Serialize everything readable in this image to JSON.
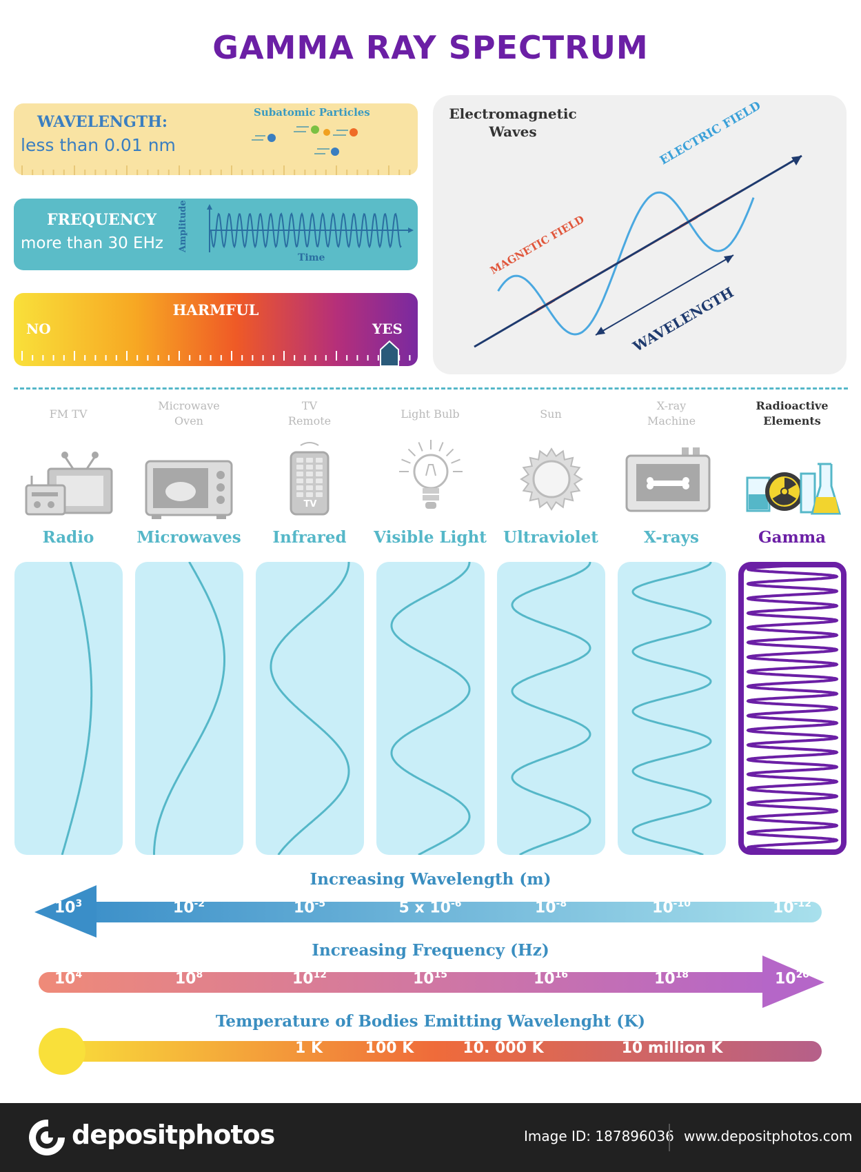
{
  "title": "GAMMA RAY SPECTRUM",
  "wavelength": {
    "label": "WAVELENGTH:",
    "value": "less than 0.01 nm",
    "particles_label": "Subatomic Particles"
  },
  "frequency": {
    "label": "FREQUENCY",
    "value": "more than 30 EHz",
    "y_axis": "Amplitude",
    "x_axis": "Time"
  },
  "harmful": {
    "label": "HARMFUL",
    "no": "NO",
    "yes": "YES"
  },
  "em": {
    "title_line1": "Electromagnetic",
    "title_line2": "Waves",
    "electric": "ELECTRIC FIELD",
    "magnetic": "MAGNETIC FIELD",
    "wavelength": "WAVELENGTH"
  },
  "sources": [
    {
      "line1": "FM   TV",
      "line2": ""
    },
    {
      "line1": "Microwave",
      "line2": "Oven"
    },
    {
      "line1": "TV",
      "line2": "Remote"
    },
    {
      "line1": "Light Bulb",
      "line2": ""
    },
    {
      "line1": "Sun",
      "line2": ""
    },
    {
      "line1": "X-ray",
      "line2": "Machine"
    },
    {
      "line1": "Radioactive",
      "line2": "Elements"
    }
  ],
  "remote_label": "TV",
  "categories": [
    "Radio",
    "Microwaves",
    "Infrared",
    "Visible Light",
    "Ultraviolet",
    "X-rays",
    "Gamma"
  ],
  "scales": {
    "wavelength": {
      "label": "Increasing Wavelength (m)",
      "ticks": [
        {
          "base": "10",
          "exp": "3"
        },
        {
          "base": "10",
          "exp": "-2"
        },
        {
          "base": "10",
          "exp": "-5"
        },
        {
          "base": "5 x 10",
          "exp": "-6"
        },
        {
          "base": "10",
          "exp": "-8"
        },
        {
          "base": "10",
          "exp": "-10"
        },
        {
          "base": "10",
          "exp": "-12"
        }
      ]
    },
    "frequency": {
      "label": "Increasing Frequency (Hz)",
      "ticks": [
        {
          "base": "10",
          "exp": "4"
        },
        {
          "base": "10",
          "exp": "8"
        },
        {
          "base": "10",
          "exp": "12"
        },
        {
          "base": "10",
          "exp": "15"
        },
        {
          "base": "10",
          "exp": "16"
        },
        {
          "base": "10",
          "exp": "18"
        },
        {
          "base": "10",
          "exp": "20"
        }
      ]
    },
    "temperature": {
      "label": "Temperature of Bodies Emitting Wavelenght (K)",
      "ticks": [
        "1 K",
        "100 K",
        "10. 000 K",
        "10 million K"
      ]
    }
  },
  "footer": {
    "brand": "depositphotos",
    "image_id": "Image ID: 187896036",
    "url": "www.depositphotos.com"
  },
  "colors": {
    "title": "#6b1fa5",
    "teal": "#55b7c8",
    "gamma": "#6b1fa5",
    "panel": "#c9eef8"
  }
}
